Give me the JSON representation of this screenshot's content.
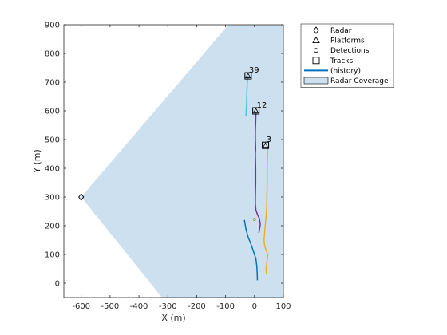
{
  "chart_data": {
    "type": "scatter",
    "xlabel": "X (m)",
    "ylabel": "Y (m)",
    "xlim": [
      -660,
      100
    ],
    "ylim": [
      -50,
      900
    ],
    "xticks": [
      -600,
      -500,
      -400,
      -300,
      -200,
      -100,
      0,
      100
    ],
    "yticks": [
      0,
      100,
      200,
      300,
      400,
      500,
      600,
      700,
      800,
      900
    ],
    "radar": {
      "x": -600,
      "y": 300
    },
    "coverage": {
      "color": "#cce0ef",
      "polygon": [
        [
          -600,
          300
        ],
        [
          -320,
          -50
        ],
        [
          100,
          -50
        ],
        [
          100,
          900
        ],
        [
          -90,
          900
        ]
      ]
    },
    "history": [
      {
        "color": "#0072bd",
        "points": [
          [
            -35,
            220
          ],
          [
            -30,
            190
          ],
          [
            -22,
            160
          ],
          [
            -12,
            135
          ],
          [
            -5,
            115
          ],
          [
            0,
            100
          ],
          [
            5,
            85
          ],
          [
            8,
            60
          ],
          [
            9,
            40
          ],
          [
            10,
            20
          ],
          [
            10,
            10
          ]
        ]
      },
      {
        "color": "#4dbeee",
        "points": [
          [
            -30,
            580
          ],
          [
            -28,
            610
          ],
          [
            -27,
            640
          ],
          [
            -26,
            670
          ],
          [
            -25,
            700
          ],
          [
            -22,
            722
          ]
        ]
      },
      {
        "color": "#7e2f8e",
        "points": [
          [
            15,
            175
          ],
          [
            18,
            190
          ],
          [
            20,
            205
          ],
          [
            17,
            225
          ],
          [
            10,
            240
          ],
          [
            5,
            255
          ],
          [
            3,
            275
          ],
          [
            3,
            300
          ],
          [
            4,
            350
          ],
          [
            4,
            400
          ],
          [
            3,
            450
          ],
          [
            4,
            470
          ],
          [
            3,
            500
          ],
          [
            3,
            530
          ],
          [
            4,
            560
          ],
          [
            5,
            592
          ]
        ]
      },
      {
        "color": "#edb120",
        "points": [
          [
            42,
            30
          ],
          [
            40,
            50
          ],
          [
            44,
            80
          ],
          [
            46,
            100
          ],
          [
            40,
            115
          ],
          [
            35,
            130
          ],
          [
            33,
            150
          ],
          [
            35,
            175
          ],
          [
            37,
            200
          ],
          [
            40,
            230
          ],
          [
            42,
            260
          ],
          [
            43,
            300
          ],
          [
            44,
            350
          ],
          [
            44,
            400
          ],
          [
            45,
            450
          ],
          [
            45,
            476
          ]
        ]
      }
    ],
    "tracks": [
      {
        "id": "39",
        "x": -22,
        "y": 722
      },
      {
        "id": "12",
        "x": 5,
        "y": 600
      },
      {
        "id": "3",
        "x": 38,
        "y": 480
      }
    ],
    "detections": [
      {
        "x": 0,
        "y": 222
      }
    ],
    "legend": {
      "position": "top-right-outside",
      "entries": [
        {
          "label": "Radar",
          "marker": "diamond"
        },
        {
          "label": "Platforms",
          "marker": "triangle"
        },
        {
          "label": "Detections",
          "marker": "circle"
        },
        {
          "label": "Tracks",
          "marker": "square"
        },
        {
          "label": "(history)",
          "marker": "line",
          "color": "#0072bd"
        },
        {
          "label": "Radar Coverage",
          "marker": "patch",
          "color": "#cce0ef"
        }
      ]
    }
  }
}
